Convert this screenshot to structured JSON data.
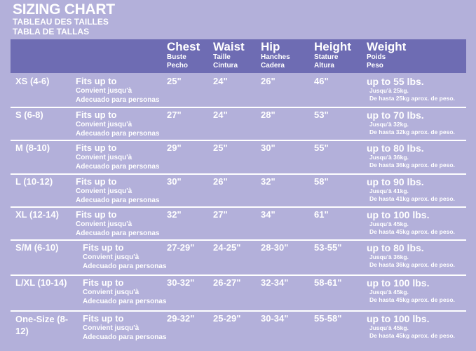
{
  "title": "SIZING CHART",
  "title_fr": "TABLEAU DES TAILLES",
  "title_es": "TABLA DE TALLAS",
  "colors": {
    "background": "#b3b0da",
    "header": "#6e6cb3",
    "text": "#ffffff"
  },
  "headers": [
    {
      "en": "Chest",
      "fr": "Buste",
      "es": "Pecho"
    },
    {
      "en": "Waist",
      "fr": "Taille",
      "es": "Cintura"
    },
    {
      "en": "Hip",
      "fr": "Hanches",
      "es": "Cadera"
    },
    {
      "en": "Height",
      "fr": "Stature",
      "es": "Altura"
    },
    {
      "en": "Weight",
      "fr": "Poids",
      "es": "Peso"
    }
  ],
  "fits": {
    "en": "Fits up to",
    "fr": "Convient jusqu'à",
    "es": "Adecuado para personas"
  },
  "rows": [
    {
      "size": "XS (4-6)",
      "chest": "25\"",
      "waist": "24\"",
      "hip": "26\"",
      "height": "46\"",
      "weight": "up to 55 lbs.",
      "kg_fr": "Jusqu'à 25kg.",
      "kg_es": "De hasta 25kg aprox. de peso."
    },
    {
      "size": "S (6-8)",
      "chest": "27\"",
      "waist": "24\"",
      "hip": "28\"",
      "height": "53\"",
      "weight": "up to 70 lbs.",
      "kg_fr": "Jusqu'à 32kg.",
      "kg_es": "De hasta 32kg aprox. de peso."
    },
    {
      "size": "M (8-10)",
      "chest": "29\"",
      "waist": "25\"",
      "hip": "30\"",
      "height": "55\"",
      "weight": "up to 80 lbs.",
      "kg_fr": "Jusqu'à 36kg.",
      "kg_es": "De hasta 36kg aprox. de peso."
    },
    {
      "size": "L (10-12)",
      "chest": "30\"",
      "waist": "26\"",
      "hip": "32\"",
      "height": "58\"",
      "weight": "up to 90 lbs.",
      "kg_fr": "Jusqu'à 41kg.",
      "kg_es": "De hasta 41kg aprox. de peso."
    },
    {
      "size": "XL (12-14)",
      "chest": "32\"",
      "waist": "27\"",
      "hip": "34\"",
      "height": "61\"",
      "weight": "up to 100 lbs.",
      "kg_fr": "Jusqu'à 45kg.",
      "kg_es": "De hasta 45kg aprox. de peso."
    },
    {
      "size": "S/M (6-10)",
      "chest": "27-29\"",
      "waist": "24-25\"",
      "hip": "28-30\"",
      "height": "53-55\"",
      "weight": "up to 80 lbs.",
      "kg_fr": "Jusqu'à 36kg.",
      "kg_es": "De hasta 36kg aprox. de peso."
    },
    {
      "size": "L/XL (10-14)",
      "chest": "30-32\"",
      "waist": "26-27\"",
      "hip": "32-34\"",
      "height": "58-61\"",
      "weight": "up to 100 lbs.",
      "kg_fr": "Jusqu'à 45kg.",
      "kg_es": "De hasta 45kg aprox. de peso."
    },
    {
      "size": "One-Size (8-12)",
      "chest": "29-32\"",
      "waist": "25-29\"",
      "hip": "30-34\"",
      "height": "55-58\"",
      "weight": "up to 100 lbs.",
      "kg_fr": "Jusqu'à 45kg.",
      "kg_es": "De hasta 45kg aprox. de peso."
    }
  ]
}
